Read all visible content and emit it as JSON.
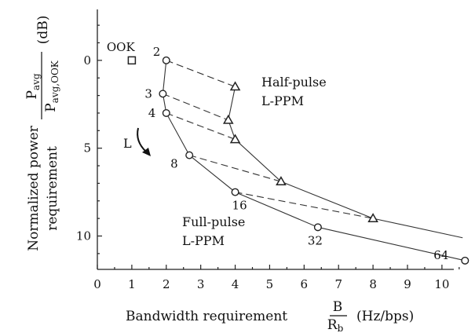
{
  "chart_data": {
    "type": "line",
    "xlabel": "Bandwidth requirement",
    "xlabel_fraction": {
      "numerator": "B",
      "denominator": "R",
      "denominator_sub": "b"
    },
    "xlabel_unit": "(Hz/bps)",
    "ylabel": [
      "Normalized power",
      "requirement"
    ],
    "ylabel_fraction": {
      "numerator": "P",
      "numerator_sub": "avg",
      "denominator": "P",
      "denominator_sub": "avg,OOK"
    },
    "ylabel_unit": "(dB)",
    "xlim": [
      0,
      10.8
    ],
    "ylim": [
      -2.9,
      11.9
    ],
    "y_inverted": true,
    "x_ticks": [
      "0",
      "1",
      "2",
      "3",
      "4",
      "5",
      "6",
      "7",
      "8",
      "9",
      "10"
    ],
    "y_ticks": [
      "0",
      "5",
      "10"
    ],
    "series": [
      {
        "name": "Full-pulse L-PPM",
        "marker": "circle",
        "points": [
          {
            "L": "2",
            "x": 2.0,
            "y": 0.0
          },
          {
            "L": "3",
            "x": 1.9,
            "y": 1.9
          },
          {
            "L": "4",
            "x": 2.0,
            "y": 3.0
          },
          {
            "L": "8",
            "x": 2.67,
            "y": 5.4
          },
          {
            "L": "16",
            "x": 4.0,
            "y": 7.5
          },
          {
            "L": "32",
            "x": 6.4,
            "y": 9.5
          },
          {
            "L": "64",
            "x": 10.67,
            "y": 11.4
          }
        ]
      },
      {
        "name": "Half-pulse L-PPM",
        "marker": "triangle",
        "points": [
          {
            "x": 4.0,
            "y": 1.5
          },
          {
            "x": 3.8,
            "y": 3.4
          },
          {
            "x": 4.0,
            "y": 4.5
          },
          {
            "x": 5.33,
            "y": 6.9
          },
          {
            "x": 8.0,
            "y": 9.0
          },
          {
            "x": 10.6,
            "y": 10.1
          }
        ]
      }
    ],
    "ook_point": {
      "label": "OOK",
      "x": 1.0,
      "y": 0.0,
      "marker": "square"
    },
    "annotations": {
      "half_pulse": [
        "Half-pulse",
        "L-PPM"
      ],
      "full_pulse": [
        "Full-pulse",
        "L-PPM"
      ],
      "arrow_label": "L"
    },
    "grid": false,
    "legend": "none"
  }
}
